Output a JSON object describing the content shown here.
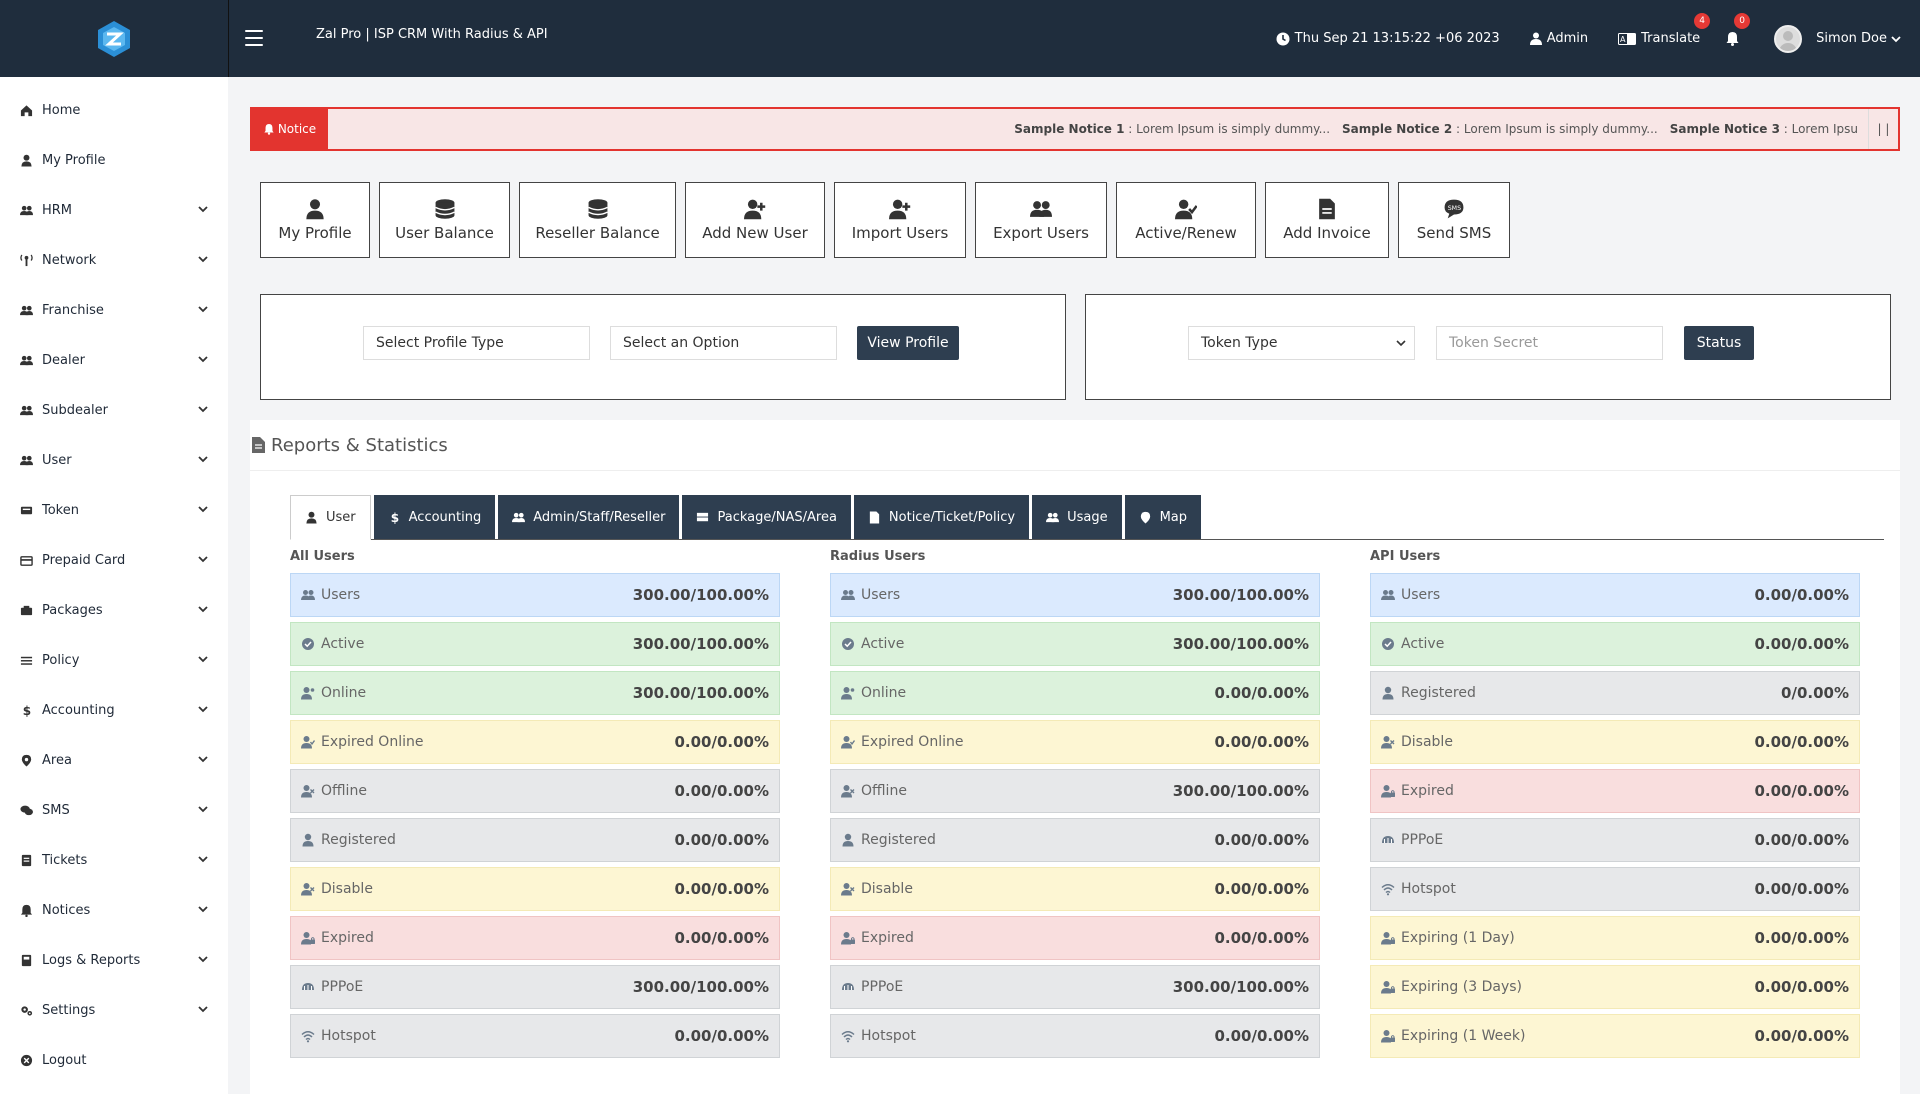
{
  "app": {
    "title": "Zal Pro | ISP CRM With Radius & API"
  },
  "topbar": {
    "datetime": "Thu Sep 21 13:15:22 +06 2023",
    "role": "Admin",
    "translate": "Translate",
    "translate_badge": "4",
    "notif_badge": "0",
    "user_name": "Simon Doe"
  },
  "sidebar": {
    "items": [
      {
        "label": "Home",
        "icon": "home-icon",
        "sub": false
      },
      {
        "label": "My Profile",
        "icon": "user-icon",
        "sub": false
      },
      {
        "label": "HRM",
        "icon": "users-icon",
        "sub": true
      },
      {
        "label": "Network",
        "icon": "network-icon",
        "sub": true
      },
      {
        "label": "Franchise",
        "icon": "users-icon",
        "sub": true
      },
      {
        "label": "Dealer",
        "icon": "users-icon",
        "sub": true
      },
      {
        "label": "Subdealer",
        "icon": "users-icon",
        "sub": true
      },
      {
        "label": "User",
        "icon": "users-icon",
        "sub": true
      },
      {
        "label": "Token",
        "icon": "token-icon",
        "sub": true
      },
      {
        "label": "Prepaid Card",
        "icon": "card-icon",
        "sub": true
      },
      {
        "label": "Packages",
        "icon": "packages-icon",
        "sub": true
      },
      {
        "label": "Policy",
        "icon": "list-icon",
        "sub": true
      },
      {
        "label": "Accounting",
        "icon": "dollar-icon",
        "sub": true
      },
      {
        "label": "Area",
        "icon": "map-marker-icon",
        "sub": true
      },
      {
        "label": "SMS",
        "icon": "chat-icon",
        "sub": true
      },
      {
        "label": "Tickets",
        "icon": "ticket-icon",
        "sub": true
      },
      {
        "label": "Notices",
        "icon": "bell-icon",
        "sub": true
      },
      {
        "label": "Logs & Reports",
        "icon": "book-icon",
        "sub": true
      },
      {
        "label": "Settings",
        "icon": "gears-icon",
        "sub": true
      },
      {
        "label": "Logout",
        "icon": "logout-icon",
        "sub": false
      }
    ]
  },
  "notice": {
    "tag": "Notice",
    "items": [
      {
        "title": "Sample Notice 1",
        "text": " : Lorem Ipsum is simply dummy..."
      },
      {
        "title": "Sample Notice 2",
        "text": " : Lorem Ipsum is simply dummy..."
      },
      {
        "title": "Sample Notice 3",
        "text": " : Lorem Ipsu"
      }
    ],
    "pause": "| |"
  },
  "quick_actions": [
    {
      "label": "My Profile",
      "icon": "user-icon"
    },
    {
      "label": "User Balance",
      "icon": "coins-icon"
    },
    {
      "label": "Reseller Balance",
      "icon": "coins-icon"
    },
    {
      "label": "Add New User",
      "icon": "user-plus-icon"
    },
    {
      "label": "Import Users",
      "icon": "user-plus-icon"
    },
    {
      "label": "Export Users",
      "icon": "users-icon"
    },
    {
      "label": "Active/Renew",
      "icon": "user-check-icon"
    },
    {
      "label": "Add Invoice",
      "icon": "file-icon"
    },
    {
      "label": "Send SMS",
      "icon": "sms-icon"
    }
  ],
  "profile_panel": {
    "profile_type": "Select Profile Type",
    "option": "Select an Option",
    "button": "View Profile"
  },
  "token_panel": {
    "token_type": "Token Type",
    "token_secret_placeholder": "Token Secret",
    "button": "Status"
  },
  "reports": {
    "title": "Reports & Statistics",
    "tabs": [
      {
        "label": "User",
        "icon": "user-icon",
        "active": true
      },
      {
        "label": "Accounting",
        "icon": "dollar-icon",
        "active": false
      },
      {
        "label": "Admin/Staff/Reseller",
        "icon": "users-icon",
        "active": false
      },
      {
        "label": "Package/NAS/Area",
        "icon": "server-icon",
        "active": false
      },
      {
        "label": "Notice/Ticket/Policy",
        "icon": "file-icon",
        "active": false
      },
      {
        "label": "Usage",
        "icon": "users-icon",
        "active": false
      },
      {
        "label": "Map",
        "icon": "map-marker-icon",
        "active": false
      }
    ],
    "columns": [
      {
        "title": "All Users",
        "rows": [
          {
            "label": "Users",
            "value": "300.00/100.00%",
            "color": "blue",
            "icon": "users-icon"
          },
          {
            "label": "Active",
            "value": "300.00/100.00%",
            "color": "green",
            "icon": "check-circle-icon"
          },
          {
            "label": "Online",
            "value": "300.00/100.00%",
            "color": "green",
            "icon": "user-online-icon"
          },
          {
            "label": "Expired Online",
            "value": "0.00/0.00%",
            "color": "yellow",
            "icon": "user-clock-icon"
          },
          {
            "label": "Offline",
            "value": "0.00/0.00%",
            "color": "gray",
            "icon": "user-x-icon"
          },
          {
            "label": "Registered",
            "value": "0.00/0.00%",
            "color": "gray",
            "icon": "user-icon"
          },
          {
            "label": "Disable",
            "value": "0.00/0.00%",
            "color": "yellow",
            "icon": "user-x-icon"
          },
          {
            "label": "Expired",
            "value": "0.00/0.00%",
            "color": "red",
            "icon": "user-lock-icon"
          },
          {
            "label": "PPPoE",
            "value": "300.00/100.00%",
            "color": "gray",
            "icon": "plug-icon"
          },
          {
            "label": "Hotspot",
            "value": "0.00/0.00%",
            "color": "gray",
            "icon": "wifi-icon"
          }
        ]
      },
      {
        "title": "Radius Users",
        "rows": [
          {
            "label": "Users",
            "value": "300.00/100.00%",
            "color": "blue",
            "icon": "users-icon"
          },
          {
            "label": "Active",
            "value": "300.00/100.00%",
            "color": "green",
            "icon": "check-circle-icon"
          },
          {
            "label": "Online",
            "value": "0.00/0.00%",
            "color": "green",
            "icon": "user-online-icon"
          },
          {
            "label": "Expired Online",
            "value": "0.00/0.00%",
            "color": "yellow",
            "icon": "user-clock-icon"
          },
          {
            "label": "Offline",
            "value": "300.00/100.00%",
            "color": "gray",
            "icon": "user-x-icon"
          },
          {
            "label": "Registered",
            "value": "0.00/0.00%",
            "color": "gray",
            "icon": "user-icon"
          },
          {
            "label": "Disable",
            "value": "0.00/0.00%",
            "color": "yellow",
            "icon": "user-x-icon"
          },
          {
            "label": "Expired",
            "value": "0.00/0.00%",
            "color": "red",
            "icon": "user-lock-icon"
          },
          {
            "label": "PPPoE",
            "value": "300.00/100.00%",
            "color": "gray",
            "icon": "plug-icon"
          },
          {
            "label": "Hotspot",
            "value": "0.00/0.00%",
            "color": "gray",
            "icon": "wifi-icon"
          }
        ]
      },
      {
        "title": "API Users",
        "rows": [
          {
            "label": "Users",
            "value": "0.00/0.00%",
            "color": "blue",
            "icon": "users-icon"
          },
          {
            "label": "Active",
            "value": "0.00/0.00%",
            "color": "green",
            "icon": "check-circle-icon"
          },
          {
            "label": "Registered",
            "value": "0/0.00%",
            "color": "gray",
            "icon": "user-icon"
          },
          {
            "label": "Disable",
            "value": "0.00/0.00%",
            "color": "yellow",
            "icon": "user-x-icon"
          },
          {
            "label": "Expired",
            "value": "0.00/0.00%",
            "color": "red",
            "icon": "user-lock-icon"
          },
          {
            "label": "PPPoE",
            "value": "0.00/0.00%",
            "color": "gray",
            "icon": "plug-icon"
          },
          {
            "label": "Hotspot",
            "value": "0.00/0.00%",
            "color": "gray",
            "icon": "wifi-icon"
          },
          {
            "label": "Expiring (1 Day)",
            "value": "0.00/0.00%",
            "color": "yellow",
            "icon": "user-lock-icon"
          },
          {
            "label": "Expiring (3 Days)",
            "value": "0.00/0.00%",
            "color": "yellow",
            "icon": "user-lock-icon"
          },
          {
            "label": "Expiring (1 Week)",
            "value": "0.00/0.00%",
            "color": "yellow",
            "icon": "user-lock-icon"
          }
        ]
      }
    ]
  },
  "colors": {
    "topbar": "#1f2d3d",
    "dark_button": "#2e3e50",
    "notice_red": "#e3342f",
    "logo_blue": "#2b8fd6"
  }
}
